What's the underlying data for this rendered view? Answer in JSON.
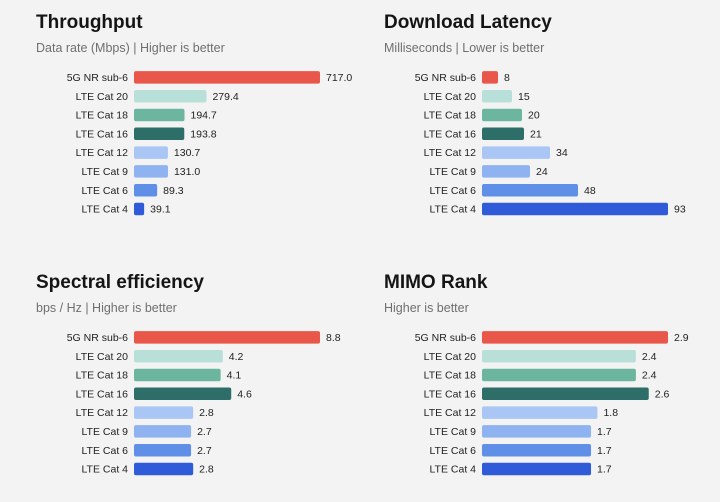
{
  "panels": [
    {
      "title": "Throughput",
      "subtitle": "Data rate (Mbps) | Higher is better"
    },
    {
      "title": "Download Latency",
      "subtitle": "Milliseconds | Lower is better"
    },
    {
      "title": "Spectral efficiency",
      "subtitle": "bps / Hz | Higher is better"
    },
    {
      "title": "MIMO Rank",
      "subtitle": "Higher is better"
    }
  ],
  "colors": [
    "#e8574a",
    "#b8e0d8",
    "#6cb6a0",
    "#2e6e68",
    "#a9c6f4",
    "#8fb3f0",
    "#5f8fe6",
    "#2f5ad8"
  ],
  "chart_data": [
    {
      "type": "bar",
      "orientation": "horizontal",
      "title": "Throughput",
      "subtitle": "Data rate (Mbps) | Higher is better",
      "categories": [
        "5G NR sub-6",
        "LTE Cat 20",
        "LTE Cat 18",
        "LTE Cat 16",
        "LTE Cat 12",
        "LTE Cat 9",
        "LTE Cat 6",
        "LTE Cat 4"
      ],
      "values": [
        717.0,
        279.4,
        194.7,
        193.8,
        130.7,
        131.0,
        89.3,
        39.1
      ],
      "value_labels": [
        "717.0",
        "279.4",
        "194.7",
        "193.8",
        "130.7",
        "131.0",
        "89.3",
        "39.1"
      ],
      "xlim": [
        0,
        717.0
      ]
    },
    {
      "type": "bar",
      "orientation": "horizontal",
      "title": "Download Latency",
      "subtitle": "Milliseconds | Lower is better",
      "categories": [
        "5G NR sub-6",
        "LTE Cat 20",
        "LTE Cat 18",
        "LTE Cat 16",
        "LTE Cat 12",
        "LTE Cat 9",
        "LTE Cat 6",
        "LTE Cat 4"
      ],
      "values": [
        8,
        15,
        20,
        21,
        34,
        24,
        48,
        93
      ],
      "value_labels": [
        "8",
        "15",
        "20",
        "21",
        "34",
        "24",
        "48",
        "93"
      ],
      "xlim": [
        0,
        93
      ]
    },
    {
      "type": "bar",
      "orientation": "horizontal",
      "title": "Spectral efficiency",
      "subtitle": "bps / Hz | Higher is better",
      "categories": [
        "5G NR sub-6",
        "LTE Cat 20",
        "LTE Cat 18",
        "LTE Cat 16",
        "LTE Cat 12",
        "LTE Cat 9",
        "LTE Cat 6",
        "LTE Cat 4"
      ],
      "values": [
        8.8,
        4.2,
        4.1,
        4.6,
        2.8,
        2.7,
        2.7,
        2.8
      ],
      "value_labels": [
        "8.8",
        "4.2",
        "4.1",
        "4.6",
        "2.8",
        "2.7",
        "2.7",
        "2.8"
      ],
      "xlim": [
        0,
        8.8
      ]
    },
    {
      "type": "bar",
      "orientation": "horizontal",
      "title": "MIMO Rank",
      "subtitle": "Higher is better",
      "categories": [
        "5G NR sub-6",
        "LTE Cat 20",
        "LTE Cat 18",
        "LTE Cat 16",
        "LTE Cat 12",
        "LTE Cat 9",
        "LTE Cat 6",
        "LTE Cat 4"
      ],
      "values": [
        2.9,
        2.4,
        2.4,
        2.6,
        1.8,
        1.7,
        1.7,
        1.7
      ],
      "value_labels": [
        "2.9",
        "2.4",
        "2.4",
        "2.6",
        "1.8",
        "1.7",
        "1.7",
        "1.7"
      ],
      "xlim": [
        0,
        2.9
      ]
    }
  ]
}
